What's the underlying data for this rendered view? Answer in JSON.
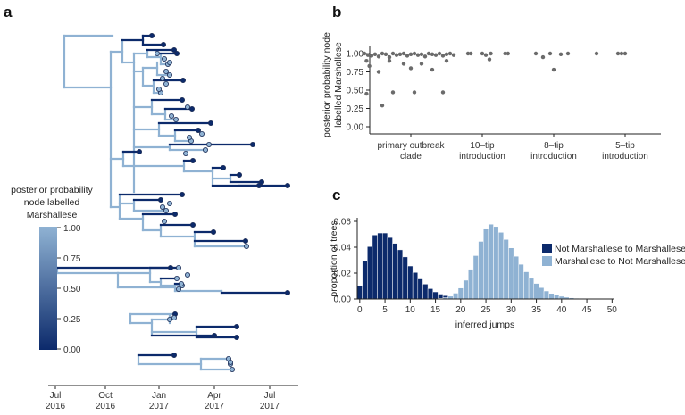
{
  "panels": {
    "a": "a",
    "b": "b",
    "c": "c"
  },
  "colors": {
    "dark": "#0c2a6b",
    "light": "#8fb2d3",
    "points": "#6b6b6b",
    "tree_mid": "#4f7fb4"
  },
  "chart_data": [
    {
      "id": "a",
      "type": "tree",
      "title": "",
      "xaxis": {
        "ticks": [
          {
            "line1": "Jul",
            "line2": "2016"
          },
          {
            "line1": "Oct",
            "line2": "2016"
          },
          {
            "line1": "Jan",
            "line2": "2017"
          },
          {
            "line1": "Apr",
            "line2": "2017"
          },
          {
            "line1": "Jul",
            "line2": "2017"
          }
        ]
      },
      "legend": {
        "title_lines": [
          "posterior probability",
          "node labelled",
          "Marshallese"
        ],
        "ticks": [
          "1.00",
          "0.75",
          "0.50",
          "0.25",
          "0.00"
        ],
        "range": [
          0,
          1
        ]
      }
    },
    {
      "id": "b",
      "type": "scatter",
      "ylabel_lines": [
        "posterior probability node",
        "labelled Marshallese"
      ],
      "yticks": [
        "1.00",
        "0.75",
        "0.50",
        "0.25",
        "0.00"
      ],
      "ylim": [
        0,
        1.05
      ],
      "categories": [
        {
          "line1": "primary outbreak",
          "line2": "clade"
        },
        {
          "line1": "10–tip",
          "line2": "introduction"
        },
        {
          "line1": "8–tip",
          "line2": "introduction"
        },
        {
          "line1": "5–tip",
          "line2": "introduction"
        }
      ],
      "points": [
        [
          0.35,
          1.0
        ],
        [
          0.4,
          0.98
        ],
        [
          0.45,
          0.97
        ],
        [
          0.5,
          0.99
        ],
        [
          0.55,
          0.96
        ],
        [
          0.6,
          1.0
        ],
        [
          0.65,
          0.99
        ],
        [
          0.7,
          0.95
        ],
        [
          0.75,
          1.0
        ],
        [
          0.8,
          0.98
        ],
        [
          0.85,
          0.99
        ],
        [
          0.9,
          1.0
        ],
        [
          0.95,
          0.97
        ],
        [
          1.0,
          0.99
        ],
        [
          1.05,
          1.0
        ],
        [
          1.1,
          0.98
        ],
        [
          1.15,
          0.99
        ],
        [
          1.2,
          0.96
        ],
        [
          1.25,
          1.0
        ],
        [
          1.3,
          0.99
        ],
        [
          1.35,
          0.98
        ],
        [
          1.4,
          1.0
        ],
        [
          1.45,
          0.97
        ],
        [
          1.5,
          0.99
        ],
        [
          1.55,
          1.0
        ],
        [
          1.6,
          0.98
        ],
        [
          0.38,
          0.9
        ],
        [
          0.42,
          0.83
        ],
        [
          0.55,
          0.75
        ],
        [
          0.7,
          0.9
        ],
        [
          0.9,
          0.86
        ],
        [
          1.0,
          0.8
        ],
        [
          1.15,
          0.86
        ],
        [
          1.3,
          0.78
        ],
        [
          1.5,
          0.9
        ],
        [
          0.38,
          0.45
        ],
        [
          0.75,
          0.47
        ],
        [
          1.05,
          0.47
        ],
        [
          1.45,
          0.47
        ],
        [
          0.6,
          0.29
        ],
        [
          1.8,
          1.0
        ],
        [
          1.84,
          1.0
        ],
        [
          2.0,
          1.0
        ],
        [
          2.05,
          0.98
        ],
        [
          2.1,
          0.92
        ],
        [
          2.12,
          1.0
        ],
        [
          2.32,
          1.0
        ],
        [
          2.36,
          1.0
        ],
        [
          2.75,
          1.0
        ],
        [
          2.85,
          0.95
        ],
        [
          2.95,
          1.0
        ],
        [
          3.0,
          0.78
        ],
        [
          3.1,
          0.99
        ],
        [
          3.2,
          1.0
        ],
        [
          3.6,
          1.0
        ],
        [
          3.9,
          1.0
        ],
        [
          3.95,
          1.0
        ],
        [
          4.0,
          1.0
        ]
      ]
    },
    {
      "id": "c",
      "type": "bar",
      "ylabel": "proportion of trees",
      "xlabel": "inferred jumps",
      "ylim": [
        0,
        0.06
      ],
      "yticks": [
        "0.00",
        "0.02",
        "0.04",
        "0.06"
      ],
      "xticks": [
        "0",
        "5",
        "10",
        "15",
        "20",
        "25",
        "30",
        "35",
        "40",
        "45",
        "50"
      ],
      "series": [
        {
          "name": "Not Marshallese to Marshallese",
          "color": "#0c2a6b",
          "values": [
            0.0105,
            0.0295,
            0.0405,
            0.0495,
            0.051,
            0.051,
            0.0475,
            0.043,
            0.038,
            0.0325,
            0.0255,
            0.0205,
            0.0155,
            0.0115,
            0.008,
            0.0055,
            0.0038,
            0.0026,
            0.0016,
            0.001,
            0.0006,
            0.0003,
            0.0002,
            0.0001,
            0,
            0,
            0,
            0,
            0,
            0,
            0,
            0,
            0,
            0,
            0,
            0,
            0,
            0,
            0,
            0,
            0,
            0,
            0,
            0,
            0,
            0,
            0,
            0,
            0,
            0,
            0
          ]
        },
        {
          "name": "Marshallese to Not Marshallese",
          "color": "#8fb2d3",
          "values": [
            0,
            0,
            0,
            0,
            0,
            0,
            0,
            0,
            0,
            0,
            0,
            0,
            0,
            0,
            0,
            0.0002,
            0.0005,
            0.001,
            0.0022,
            0.0045,
            0.0085,
            0.0145,
            0.023,
            0.0335,
            0.0445,
            0.054,
            0.0578,
            0.056,
            0.0515,
            0.046,
            0.0395,
            0.033,
            0.0268,
            0.021,
            0.016,
            0.012,
            0.0088,
            0.0062,
            0.0043,
            0.003,
            0.0021,
            0.0014,
            0.0009,
            0.0006,
            0.0004,
            0.0003,
            0.0002,
            0.0001,
            0.0001,
            0,
            0
          ]
        }
      ]
    }
  ]
}
